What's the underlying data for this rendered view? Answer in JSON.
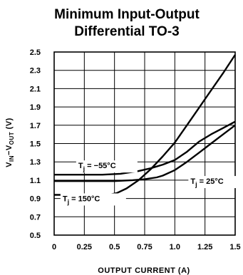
{
  "chart_data": {
    "type": "line",
    "title_lines": [
      "Minimum Input-Output",
      "Differential TO-3"
    ],
    "xlabel": "OUTPUT CURRENT (A)",
    "ylabel": {
      "main": "V",
      "sub1": "IN",
      "mid": "−V",
      "sub2": "OUT",
      "unit": " (V)"
    },
    "xlim": [
      0,
      1.5
    ],
    "ylim": [
      0.5,
      2.5
    ],
    "x_ticks": [
      0,
      0.25,
      0.5,
      0.75,
      1.0,
      1.25,
      1.5
    ],
    "x_tick_labels": [
      "0",
      "0.25",
      "0.5",
      "0.75",
      "1.0",
      "1.25",
      "1.5"
    ],
    "y_ticks": [
      0.5,
      0.7,
      0.9,
      1.1,
      1.3,
      1.5,
      1.7,
      1.9,
      2.1,
      2.3,
      2.5
    ],
    "y_tick_labels": [
      "0.5",
      "0.7",
      "0.9",
      "1.1",
      "1.3",
      "1.5",
      "1.7",
      "1.9",
      "2.1",
      "2.3",
      "2.5"
    ],
    "grid": true,
    "series": [
      {
        "annotation": {
          "main": "T",
          "sub": "j",
          "rest": " = −55°C"
        },
        "x": [
          0,
          0.4,
          0.55,
          0.7,
          0.8,
          0.9,
          1.0,
          1.1,
          1.2,
          1.3,
          1.4,
          1.5
        ],
        "y": [
          1.16,
          1.16,
          1.17,
          1.2,
          1.23,
          1.27,
          1.32,
          1.41,
          1.52,
          1.6,
          1.67,
          1.74
        ]
      },
      {
        "annotation": {
          "main": "T",
          "sub": "j",
          "rest": " = 25°C"
        },
        "x": [
          0,
          0.5,
          0.65,
          0.75,
          0.85,
          0.9,
          1.0,
          1.1,
          1.2,
          1.3,
          1.4,
          1.5
        ],
        "y": [
          1.09,
          1.09,
          1.1,
          1.11,
          1.13,
          1.15,
          1.21,
          1.3,
          1.4,
          1.5,
          1.6,
          1.7
        ]
      },
      {
        "annotation": {
          "main": "T",
          "sub": "j",
          "rest": " = 150°C"
        },
        "x": [
          0,
          0.45,
          0.52,
          0.6,
          0.7,
          0.8,
          0.9,
          1.0,
          1.1,
          1.2,
          1.3,
          1.4,
          1.5
        ],
        "y": [
          0.94,
          0.94,
          0.96,
          1.01,
          1.1,
          1.22,
          1.36,
          1.51,
          1.7,
          1.89,
          2.08,
          2.27,
          2.47
        ]
      }
    ]
  }
}
